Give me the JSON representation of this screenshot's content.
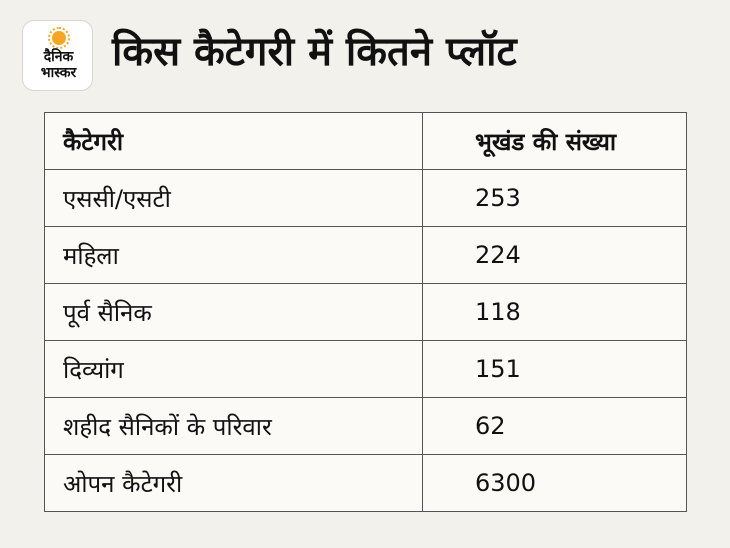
{
  "logo": {
    "line1": "दैनिक",
    "line2": "भास्कर",
    "accent_color": "#f5a623"
  },
  "title": "किस कैटेगरी में कितने प्लॉट",
  "table": {
    "headers": [
      "कैटेगरी",
      "भूखंड की संख्या"
    ],
    "rows": [
      [
        "एससी/एसटी",
        "253"
      ],
      [
        "महिला",
        "224"
      ],
      [
        "पूर्व सैनिक",
        "118"
      ],
      [
        "दिव्यांग",
        "151"
      ],
      [
        "शहीद सैनिकों के परिवार",
        "62"
      ],
      [
        "ओपन कैटेगरी",
        "6300"
      ]
    ]
  }
}
